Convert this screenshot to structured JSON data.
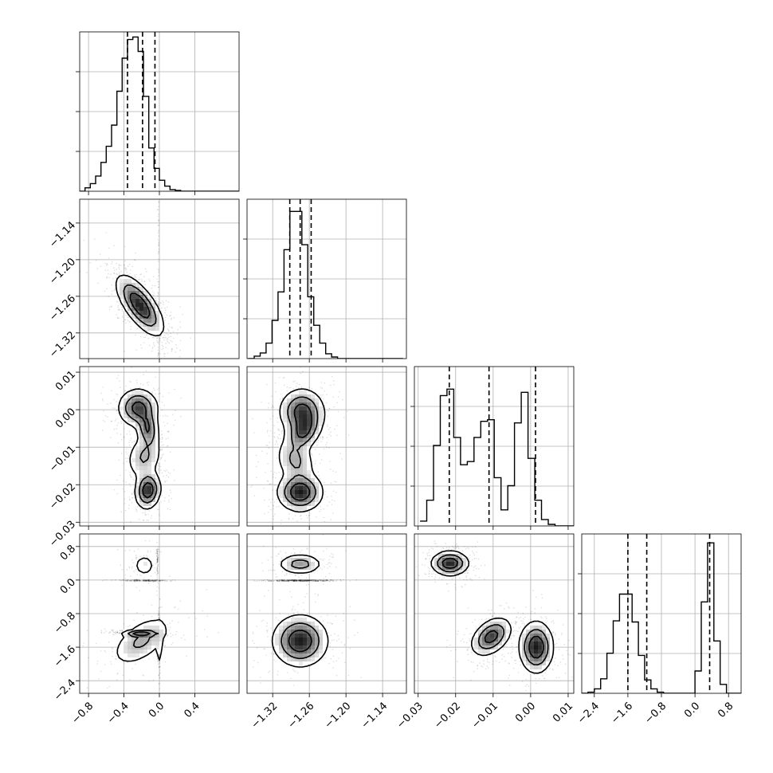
{
  "chart_data": {
    "type": "corner",
    "n_params": 4,
    "axes": [
      {
        "range": [
          -0.9,
          0.9
        ],
        "ticks": [
          -0.8,
          -0.4,
          0.0,
          0.4
        ],
        "tick_labels": [
          "−0.8",
          "−0.4",
          "0.0",
          "0.4"
        ],
        "quantiles": [
          -0.36,
          -0.19,
          -0.05
        ],
        "hist_edges_start": -0.9,
        "hist_bin_width": 0.06,
        "hist_counts": [
          0,
          0.4,
          0.9,
          1.8,
          3.4,
          5.3,
          7.8,
          11.8,
          15.7,
          17.9,
          18.2,
          16.5,
          11.2,
          5.1,
          2.7,
          1.3,
          0.6,
          0.2,
          0.1,
          0,
          0,
          0,
          0,
          0,
          0,
          0,
          0,
          0,
          0,
          0
        ],
        "hist_ymax": 18.8
      },
      {
        "range": [
          -1.362,
          -1.101
        ],
        "ticks": [
          -1.32,
          -1.26,
          -1.2,
          -1.14
        ],
        "tick_labels": [
          "−1.32",
          "−1.26",
          "−1.20",
          "−1.14"
        ],
        "quantiles": [
          -1.292,
          -1.275,
          -1.257
        ],
        "hist_edges_start": -1.36,
        "hist_bin_width": 0.00975,
        "hist_counts": [
          0,
          0.3,
          0.7,
          1.9,
          4.7,
          8.2,
          13.4,
          18.1,
          18.1,
          14.0,
          7.6,
          4.1,
          1.9,
          0.6,
          0.2,
          0,
          0,
          0,
          0,
          0,
          0,
          0,
          0,
          0,
          0,
          0
        ],
        "hist_ymax": 19.6
      },
      {
        "range": [
          -0.031,
          0.0115
        ],
        "ticks": [
          -0.03,
          -0.02,
          -0.01,
          0.0,
          0.01
        ],
        "tick_labels": [
          "−0.03",
          "−0.02",
          "−0.01",
          "0.00",
          "0.01"
        ],
        "quantiles": [
          -0.0217,
          -0.0111,
          0.0013
        ],
        "hist_edges_start": -0.0295,
        "hist_bin_width": 0.0018,
        "hist_counts": [
          0.3,
          1.6,
          5.0,
          8.1,
          8.5,
          5.5,
          3.8,
          4.0,
          5.5,
          6.5,
          6.6,
          3.0,
          1.0,
          2.5,
          6.4,
          8.3,
          4.2,
          1.6,
          0.4,
          0.1,
          0,
          0,
          0,
          0
        ],
        "hist_ymax": 9.9
      },
      {
        "range": [
          -2.7,
          1.1
        ],
        "ticks": [
          -2.4,
          -1.6,
          -0.8,
          0.0,
          0.8
        ],
        "tick_labels": [
          "−2.4",
          "−1.6",
          "−0.8",
          "0.0",
          "0.8"
        ],
        "quantiles": [
          -1.6,
          -1.15,
          0.35
        ],
        "hist_edges_start": -2.7,
        "hist_bin_width": 0.15,
        "hist_counts": [
          0,
          0.1,
          0.4,
          1.3,
          3.6,
          6.5,
          8.9,
          8.9,
          6.4,
          3.4,
          1.2,
          0.4,
          0.1,
          0,
          0,
          0,
          0,
          0,
          2.0,
          8.2,
          13.5,
          4.7,
          0.8,
          0,
          0,
          0
        ],
        "hist_ymax": 14.3
      }
    ],
    "blobs": [
      {
        "cx": -0.22,
        "cy": -1.275,
        "sx": 0.13,
        "sy": 0.024,
        "rho": -0.7,
        "w": 1.0
      },
      {
        "cx": -0.24,
        "cy": 0.0005,
        "sx": 0.11,
        "sy": 0.0025,
        "rho": 0.0,
        "w": 0.3
      },
      {
        "cx": -0.13,
        "cy": -0.005,
        "sx": 0.06,
        "sy": 0.0025,
        "rho": -0.2,
        "w": 0.25
      },
      {
        "cx": -0.17,
        "cy": -0.0125,
        "sx": 0.1,
        "sy": 0.003,
        "rho": 0.2,
        "w": 0.15
      },
      {
        "cx": -0.13,
        "cy": -0.0215,
        "sx": 0.07,
        "sy": 0.0024,
        "rho": 0.1,
        "w": 0.35
      },
      {
        "cx": -0.17,
        "cy": 0.35,
        "sx": 0.07,
        "sy": 0.15,
        "rho": 0.0,
        "w": 0.35
      },
      {
        "cx": -0.2,
        "cy": -1.45,
        "sx": 0.17,
        "sy": 0.3,
        "rho": 0.55,
        "w": 0.65
      },
      {
        "cx": -1.272,
        "cy": -0.0005,
        "sx": 0.018,
        "sy": 0.003,
        "rho": 0.0,
        "w": 0.3
      },
      {
        "cx": -1.27,
        "cy": -0.006,
        "sx": 0.014,
        "sy": 0.0025,
        "rho": 0.3,
        "w": 0.25
      },
      {
        "cx": -1.283,
        "cy": -0.0135,
        "sx": 0.016,
        "sy": 0.003,
        "rho": -0.2,
        "w": 0.15
      },
      {
        "cx": -1.275,
        "cy": -0.022,
        "sx": 0.018,
        "sy": 0.0025,
        "rho": 0.0,
        "w": 0.35
      },
      {
        "cx": -1.275,
        "cy": 0.38,
        "sx": 0.018,
        "sy": 0.12,
        "rho": 0.0,
        "w": 0.35
      },
      {
        "cx": -1.275,
        "cy": -1.45,
        "sx": 0.022,
        "sy": 0.3,
        "rho": 0.0,
        "w": 0.65
      },
      {
        "cx": -0.0215,
        "cy": 0.4,
        "sx": 0.0024,
        "sy": 0.14,
        "rho": 0.0,
        "w": 0.35
      },
      {
        "cx": -0.0105,
        "cy": -1.35,
        "sx": 0.0026,
        "sy": 0.22,
        "rho": 0.4,
        "w": 0.3
      },
      {
        "cx": 0.0015,
        "cy": -1.6,
        "sx": 0.0022,
        "sy": 0.3,
        "rho": 0.0,
        "w": 0.35
      }
    ]
  }
}
